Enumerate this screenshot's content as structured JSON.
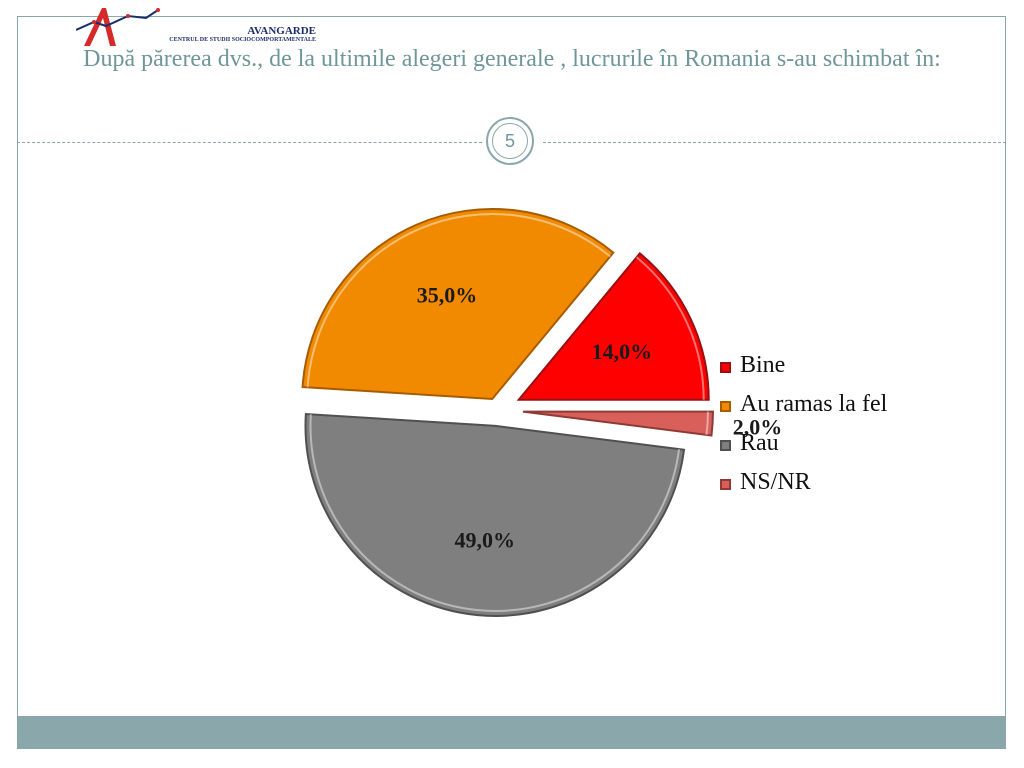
{
  "logo": {
    "name": "AVANGARDE",
    "subtitle": "CENTRUL DE STUDII SOCIOCOMPORTAMENTALE"
  },
  "title": "După părerea dvs., de la ultimile alegeri generale , lucrurile în Romania s-au schimbat în:",
  "slide_number": "5",
  "colors": {
    "accent": "#8aa8ab",
    "title": "#6f9699"
  },
  "chart_data": {
    "type": "pie",
    "exploded": true,
    "categories": [
      "Bine",
      "Au ramas la fel",
      "Rau",
      "NS/NR"
    ],
    "values": [
      14.0,
      35.0,
      49.0,
      2.0
    ],
    "labels": [
      "14,0%",
      "35,0%",
      "49,0%",
      "2,0%"
    ],
    "colors": [
      "#ff0000",
      "#f28a00",
      "#7f7f7f",
      "#d9605a"
    ],
    "legend_position": "right"
  }
}
